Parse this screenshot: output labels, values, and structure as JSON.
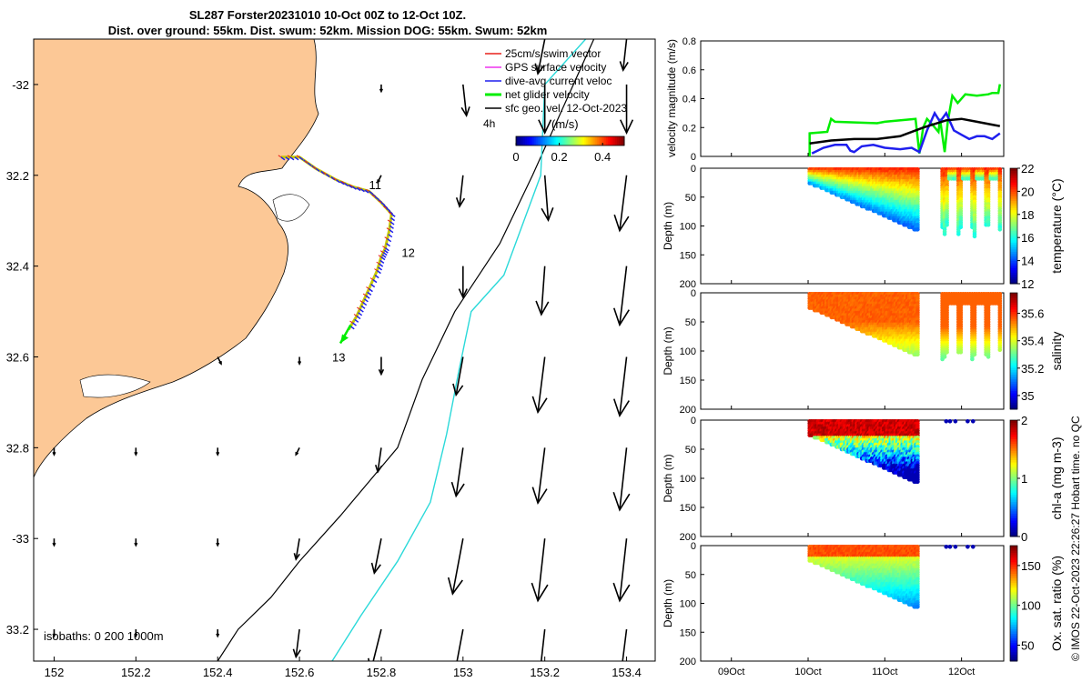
{
  "title": {
    "line1": "SL287 Forster20231010 10-Oct 00Z to 12-Oct 10Z.",
    "line2": "Dist. over ground: 55km. Dist. swum: 52km. Mission DOG: 55km. Swum: 52km"
  },
  "credit": "© IMOS 22-Oct-2023 22:26:27 Hobart time. no QC",
  "colors": {
    "land": "#fcc896",
    "cyan": "#2ad9d9",
    "green": "#00ee00",
    "blue": "#1f1fee",
    "red": "#e8201a",
    "magenta": "#ee33ee"
  },
  "chart_data": [
    {
      "id": "map",
      "type": "map",
      "xlim": [
        151.95,
        153.47
      ],
      "ylim": [
        -33.27,
        -31.9
      ],
      "xticks": [
        152,
        152.2,
        152.4,
        152.6,
        152.8,
        153,
        153.2,
        153.4
      ],
      "xtick_labels": [
        "152",
        "152.2",
        "152.4",
        "152.6",
        "152.8",
        "153",
        "153.2",
        "153.4"
      ],
      "yticks": [
        -32,
        -32.2,
        -32.4,
        -32.6,
        -32.8,
        -33,
        -33.2
      ],
      "ytick_labels": [
        "-32",
        "32.2",
        "32.4",
        "32.6",
        "32.8",
        "-33",
        "33.2"
      ],
      "legend": [
        {
          "label": "25cm/s swim vector",
          "color": "#e8201a"
        },
        {
          "label": "GPS surface velocity",
          "color": "#ee33ee"
        },
        {
          "label": "dive-avg current veloc",
          "color": "#1f1fee"
        },
        {
          "label": "net glider velocity",
          "color": "#00ee00"
        },
        {
          "label": "sfc geo. vel. 12-Oct-2023",
          "color": "#000000"
        }
      ],
      "colorbar": {
        "label": "(m/s)",
        "ticks": [
          0,
          0.2,
          0.4
        ],
        "tick_labels": [
          "0",
          "0.2",
          "0.4"
        ],
        "range": [
          0,
          0.5
        ]
      },
      "time_step_label": "4h",
      "isobath_label": "isobaths: 0 200 1000m",
      "day_labels": [
        {
          "text": "11",
          "lon": 152.77,
          "lat": -32.23
        },
        {
          "text": "12",
          "lon": 152.85,
          "lat": -32.38
        },
        {
          "text": "13",
          "lon": 152.68,
          "lat": -32.61
        }
      ],
      "track": [
        [
          152.555,
          -32.16
        ],
        [
          152.6,
          -32.16
        ],
        [
          152.64,
          -32.185
        ],
        [
          152.69,
          -32.21
        ],
        [
          152.73,
          -32.225
        ],
        [
          152.77,
          -32.235
        ],
        [
          152.8,
          -32.26
        ],
        [
          152.825,
          -32.285
        ],
        [
          152.82,
          -32.32
        ],
        [
          152.81,
          -32.36
        ],
        [
          152.8,
          -32.38
        ],
        [
          152.79,
          -32.41
        ],
        [
          152.77,
          -32.45
        ],
        [
          152.755,
          -32.48
        ],
        [
          152.74,
          -32.51
        ],
        [
          152.72,
          -32.54
        ]
      ],
      "net_velocity_arrow": {
        "from": [
          152.725,
          -32.53
        ],
        "to": [
          152.7,
          -32.57
        ]
      },
      "isobath_200m": [
        [
          153.32,
          -31.9
        ],
        [
          153.17,
          -32.2
        ],
        [
          153.09,
          -32.35
        ],
        [
          152.98,
          -32.5
        ],
        [
          152.9,
          -32.65
        ],
        [
          152.84,
          -32.8
        ],
        [
          152.7,
          -32.95
        ],
        [
          152.6,
          -33.05
        ],
        [
          152.53,
          -33.13
        ],
        [
          152.45,
          -33.2
        ],
        [
          152.4,
          -33.27
        ]
      ],
      "isobath_1000m": [
        [
          153.3,
          -31.9
        ],
        [
          153.2,
          -32.0
        ],
        [
          153.19,
          -32.2
        ],
        [
          153.1,
          -32.42
        ],
        [
          153.02,
          -32.5
        ],
        [
          152.99,
          -32.63
        ],
        [
          152.96,
          -32.77
        ],
        [
          152.92,
          -32.92
        ],
        [
          152.84,
          -33.05
        ],
        [
          152.75,
          -33.17
        ],
        [
          152.68,
          -33.27
        ]
      ],
      "geo_vectors": [
        {
          "lon": 152.0,
          "lat": -32.8,
          "u": 0.0,
          "v": -0.02
        },
        {
          "lon": 152.2,
          "lat": -32.8,
          "u": 0.0,
          "v": -0.02
        },
        {
          "lon": 152.4,
          "lat": -32.8,
          "u": 0.0,
          "v": -0.02
        },
        {
          "lon": 152.6,
          "lat": -32.8,
          "u": -0.01,
          "v": -0.02
        },
        {
          "lon": 152.4,
          "lat": -32.6,
          "u": 0.01,
          "v": -0.02
        },
        {
          "lon": 152.6,
          "lat": -32.6,
          "u": 0.0,
          "v": -0.02
        },
        {
          "lon": 152.0,
          "lat": -33.0,
          "u": 0.0,
          "v": -0.02
        },
        {
          "lon": 152.2,
          "lat": -33.0,
          "u": 0.0,
          "v": -0.02
        },
        {
          "lon": 152.4,
          "lat": -33.0,
          "u": 0.0,
          "v": -0.02
        },
        {
          "lon": 152.0,
          "lat": -33.2,
          "u": 0.0,
          "v": -0.02
        },
        {
          "lon": 152.2,
          "lat": -33.2,
          "u": 0.0,
          "v": -0.02
        },
        {
          "lon": 152.4,
          "lat": -33.2,
          "u": 0.0,
          "v": -0.02
        },
        {
          "lon": 152.8,
          "lat": -32.0,
          "u": 0.0,
          "v": -0.02
        },
        {
          "lon": 152.8,
          "lat": -32.2,
          "u": -0.01,
          "v": -0.02
        },
        {
          "lon": 152.8,
          "lat": -32.6,
          "u": 0.0,
          "v": -0.05
        },
        {
          "lon": 152.8,
          "lat": -32.8,
          "u": -0.01,
          "v": -0.07
        },
        {
          "lon": 152.8,
          "lat": -33.0,
          "u": -0.02,
          "v": -0.1
        },
        {
          "lon": 152.8,
          "lat": -33.2,
          "u": -0.03,
          "v": -0.12
        },
        {
          "lon": 152.6,
          "lat": -33.0,
          "u": -0.01,
          "v": -0.06
        },
        {
          "lon": 152.6,
          "lat": -33.2,
          "u": -0.01,
          "v": -0.08
        },
        {
          "lon": 153.0,
          "lat": -32.0,
          "u": 0.01,
          "v": -0.09
        },
        {
          "lon": 153.0,
          "lat": -32.2,
          "u": -0.01,
          "v": -0.09
        },
        {
          "lon": 153.0,
          "lat": -32.4,
          "u": 0.0,
          "v": -0.09
        },
        {
          "lon": 153.0,
          "lat": -32.6,
          "u": -0.02,
          "v": -0.11
        },
        {
          "lon": 153.0,
          "lat": -32.8,
          "u": -0.02,
          "v": -0.14
        },
        {
          "lon": 153.0,
          "lat": -33.0,
          "u": -0.03,
          "v": -0.16
        },
        {
          "lon": 153.0,
          "lat": -33.2,
          "u": -0.03,
          "v": -0.16
        },
        {
          "lon": 153.2,
          "lat": -31.9,
          "u": -0.02,
          "v": -0.1
        },
        {
          "lon": 153.2,
          "lat": -32.0,
          "u": 0.0,
          "v": -0.14
        },
        {
          "lon": 153.2,
          "lat": -32.2,
          "u": 0.01,
          "v": -0.13
        },
        {
          "lon": 153.2,
          "lat": -32.4,
          "u": -0.01,
          "v": -0.14
        },
        {
          "lon": 153.2,
          "lat": -32.6,
          "u": -0.02,
          "v": -0.16
        },
        {
          "lon": 153.2,
          "lat": -32.8,
          "u": -0.02,
          "v": -0.16
        },
        {
          "lon": 153.2,
          "lat": -33.0,
          "u": -0.02,
          "v": -0.18
        },
        {
          "lon": 153.2,
          "lat": -33.2,
          "u": -0.02,
          "v": -0.18
        },
        {
          "lon": 153.4,
          "lat": -31.9,
          "u": -0.01,
          "v": -0.09
        },
        {
          "lon": 153.4,
          "lat": -32.0,
          "u": 0.0,
          "v": -0.14
        },
        {
          "lon": 153.4,
          "lat": -32.2,
          "u": -0.02,
          "v": -0.16
        },
        {
          "lon": 153.4,
          "lat": -32.4,
          "u": -0.02,
          "v": -0.17
        },
        {
          "lon": 153.4,
          "lat": -32.6,
          "u": -0.02,
          "v": -0.17
        },
        {
          "lon": 153.4,
          "lat": -32.8,
          "u": -0.02,
          "v": -0.18
        },
        {
          "lon": 153.4,
          "lat": -33.0,
          "u": -0.02,
          "v": -0.18
        },
        {
          "lon": 153.4,
          "lat": -33.2,
          "u": -0.02,
          "v": -0.16
        }
      ]
    },
    {
      "id": "velocity",
      "type": "line",
      "ylabel": "velocity magnitude (m/s)",
      "ylim": [
        0,
        0.8
      ],
      "yticks": [
        0,
        0.2,
        0.4,
        0.6,
        0.8
      ],
      "ytick_labels": [
        "0",
        "0.2",
        "0.4",
        "0.6",
        "0.8"
      ],
      "xlim": [
        8.6,
        12.55
      ],
      "series": [
        {
          "name": "net glider velocity",
          "color": "#00ee00",
          "x": [
            10.02,
            10.02,
            10.25,
            10.3,
            10.35,
            10.9,
            11.0,
            11.4,
            11.45,
            11.5,
            11.55,
            11.62,
            11.7,
            11.72,
            11.78,
            11.82,
            11.88,
            11.95,
            12.05,
            12.2,
            12.35,
            12.4,
            12.48,
            12.5
          ],
          "y": [
            0.0,
            0.16,
            0.17,
            0.26,
            0.24,
            0.23,
            0.24,
            0.26,
            0.02,
            0.2,
            0.26,
            0.22,
            0.17,
            0.26,
            0.03,
            0.24,
            0.42,
            0.37,
            0.43,
            0.42,
            0.43,
            0.44,
            0.44,
            0.5
          ]
        },
        {
          "name": "dive-avg current",
          "color": "#1f1fee",
          "x": [
            10.05,
            10.2,
            10.35,
            10.5,
            10.55,
            10.6,
            10.7,
            10.85,
            11.0,
            11.2,
            11.35,
            11.45,
            11.55,
            11.65,
            11.72,
            11.8,
            11.9,
            12.0,
            12.1,
            12.2,
            12.3,
            12.4,
            12.5
          ],
          "y": [
            0.02,
            0.06,
            0.08,
            0.08,
            0.04,
            0.03,
            0.07,
            0.08,
            0.06,
            0.05,
            0.06,
            0.03,
            0.18,
            0.3,
            0.24,
            0.3,
            0.18,
            0.15,
            0.12,
            0.14,
            0.14,
            0.12,
            0.16
          ]
        },
        {
          "name": "sfc geo. vel.",
          "color": "#000000",
          "x": [
            10.02,
            10.3,
            10.6,
            10.9,
            11.2,
            11.5,
            11.8,
            12.0,
            12.2,
            12.4,
            12.5
          ],
          "y": [
            0.09,
            0.11,
            0.12,
            0.12,
            0.14,
            0.2,
            0.25,
            0.26,
            0.24,
            0.22,
            0.21
          ]
        }
      ]
    },
    {
      "id": "temperature",
      "type": "heatmap",
      "ylabel": "Depth (m)",
      "cbar_label": "temperature (°C)",
      "cbar_ticks": [
        "12",
        "14",
        "16",
        "18",
        "20",
        "22"
      ],
      "crange": [
        12,
        22
      ],
      "palette": "jet"
    },
    {
      "id": "salinity",
      "type": "heatmap",
      "ylabel": "Depth (m)",
      "cbar_label": "salinity",
      "cbar_ticks": [
        "35",
        "35.2",
        "35.4",
        "35.6"
      ],
      "crange": [
        34.9,
        35.75
      ],
      "palette": "jet"
    },
    {
      "id": "chla",
      "type": "heatmap",
      "ylabel": "Depth (m)",
      "cbar_label": "chl-a (mg m-3)",
      "cbar_ticks": [
        "0",
        "1",
        "2"
      ],
      "crange": [
        0,
        2
      ],
      "palette": "jet"
    },
    {
      "id": "oxygen",
      "type": "heatmap",
      "ylabel": "Depth (m)",
      "cbar_label": "Ox. sat. ratio (%)",
      "cbar_ticks": [
        "50",
        "100",
        "150"
      ],
      "crange": [
        30,
        175
      ],
      "palette": "jet"
    }
  ],
  "time_axis": {
    "ticks": [
      9,
      10,
      11,
      12
    ],
    "labels": [
      "09Oct",
      "10Oct",
      "11Oct",
      "12Oct"
    ],
    "xlim": [
      8.6,
      12.55
    ]
  },
  "depth_axis": {
    "ticks": [
      0,
      50,
      100,
      150,
      200
    ],
    "labels": [
      "0",
      "50",
      "100",
      "150",
      "200"
    ],
    "range": [
      0,
      200
    ]
  }
}
